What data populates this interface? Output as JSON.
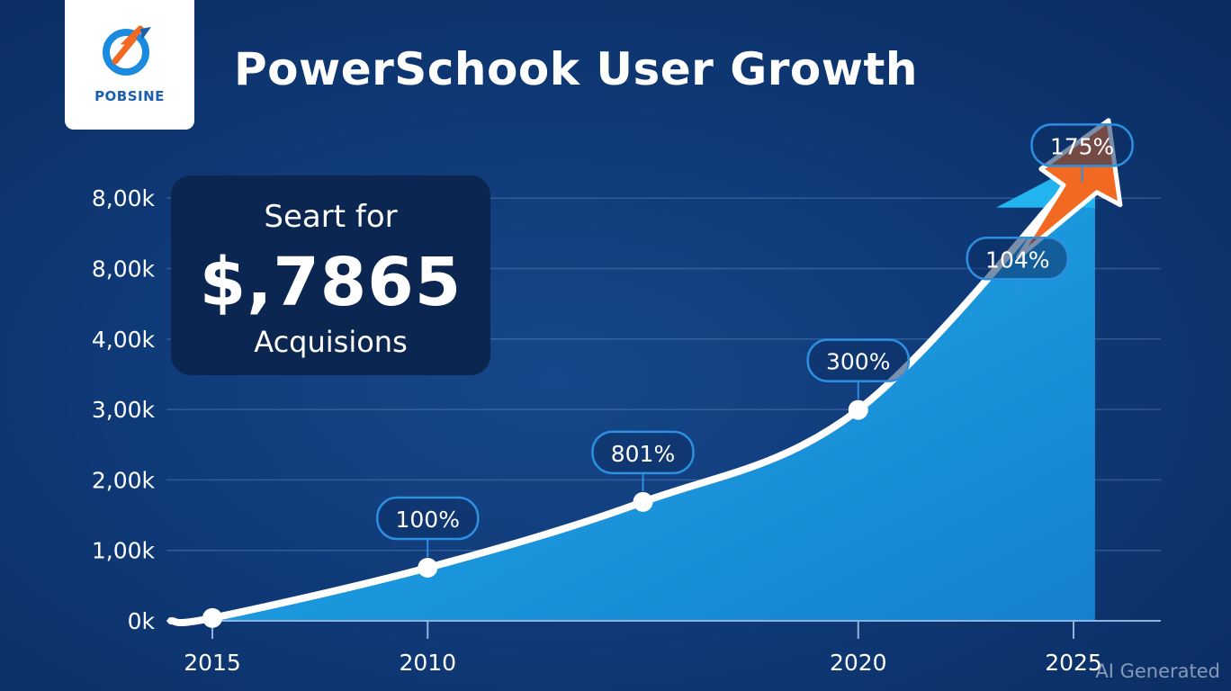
{
  "header": {
    "logo_text": "POBSINE",
    "title": "PowerSchook User Growth"
  },
  "callout": {
    "line1": "Seart for",
    "value": "$,7865",
    "line3": "Acquisions"
  },
  "watermark": "AI Generated",
  "colors": {
    "background": "#0f3a78",
    "area_fill": "#1fa6e6",
    "line": "#ffffff",
    "arrow": "#f26a21",
    "label_border": "#2c8fe0"
  },
  "chart_data": {
    "type": "area",
    "title": "PowerSchook User Growth",
    "xlabel": "",
    "ylabel": "",
    "y_tick_labels": [
      "0k",
      "1,00k",
      "2,00k",
      "3,00k",
      "4,00k",
      "8,00k",
      "8,00k"
    ],
    "x_tick_labels": [
      "2015",
      "2010",
      "2020",
      "2025"
    ],
    "x_tick_label_positions": [
      0,
      1,
      3,
      4
    ],
    "points": [
      {
        "x": 0,
        "y": 0.04,
        "label": ""
      },
      {
        "x": 1,
        "y": 0.75,
        "label": "100%"
      },
      {
        "x": 2,
        "y": 1.68,
        "label": "801%"
      },
      {
        "x": 3,
        "y": 2.98,
        "label": "300%"
      }
    ],
    "curve_end": {
      "x": 4.1,
      "y": 6.6
    },
    "floating_labels": [
      {
        "x": 3.74,
        "y": 4.7,
        "label": "104%"
      },
      {
        "x": 4.04,
        "y": 6.3,
        "label": "175%"
      }
    ],
    "ylim": [
      0,
      6.5
    ],
    "xlim": [
      0,
      4.1
    ],
    "grid": true,
    "legend": "none"
  }
}
